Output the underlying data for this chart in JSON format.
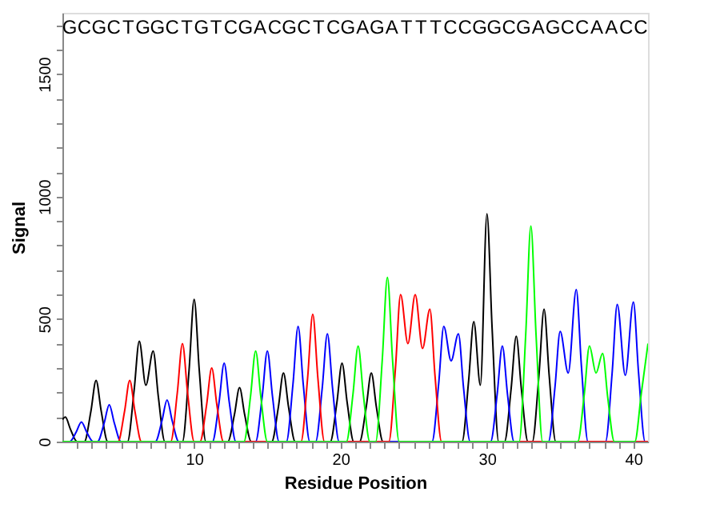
{
  "chart_data": {
    "type": "line",
    "xlabel": "Residue Position",
    "ylabel": "Signal",
    "xlim": [
      1,
      41
    ],
    "ylim": [
      0,
      1750
    ],
    "xticks": [
      {
        "value": 2,
        "label": null
      },
      {
        "value": 3,
        "label": null
      },
      {
        "value": 4,
        "label": null
      },
      {
        "value": 5,
        "label": null
      },
      {
        "value": 6,
        "label": null
      },
      {
        "value": 7,
        "label": null
      },
      {
        "value": 8,
        "label": null
      },
      {
        "value": 9,
        "label": null
      },
      10,
      {
        "value": 11,
        "label": null
      },
      {
        "value": 12,
        "label": null
      },
      {
        "value": 13,
        "label": null
      },
      {
        "value": 14,
        "label": null
      },
      {
        "value": 15,
        "label": null
      },
      {
        "value": 16,
        "label": null
      },
      {
        "value": 17,
        "label": null
      },
      {
        "value": 18,
        "label": null
      },
      {
        "value": 19,
        "label": null
      },
      20,
      {
        "value": 21,
        "label": null
      },
      {
        "value": 22,
        "label": null
      },
      {
        "value": 23,
        "label": null
      },
      {
        "value": 24,
        "label": null
      },
      {
        "value": 25,
        "label": null
      },
      {
        "value": 26,
        "label": null
      },
      {
        "value": 27,
        "label": null
      },
      {
        "value": 28,
        "label": null
      },
      {
        "value": 29,
        "label": null
      },
      30,
      {
        "value": 31,
        "label": null
      },
      {
        "value": 32,
        "label": null
      },
      {
        "value": 33,
        "label": null
      },
      {
        "value": 34,
        "label": null
      },
      {
        "value": 35,
        "label": null
      },
      {
        "value": 36,
        "label": null
      },
      {
        "value": 37,
        "label": null
      },
      {
        "value": 38,
        "label": null
      },
      {
        "value": 39,
        "label": null
      },
      40
    ],
    "yticks": [
      0,
      {
        "value": 100,
        "label": null
      },
      {
        "value": 200,
        "label": null
      },
      {
        "value": 300,
        "label": null
      },
      {
        "value": 400,
        "label": null
      },
      500,
      {
        "value": 600,
        "label": null
      },
      {
        "value": 700,
        "label": null
      },
      {
        "value": 800,
        "label": null
      },
      {
        "value": 900,
        "label": null
      },
      1000,
      {
        "value": 1100,
        "label": null
      },
      {
        "value": 1200,
        "label": null
      },
      {
        "value": 1300,
        "label": null
      },
      {
        "value": 1400,
        "label": null
      },
      1500,
      {
        "value": 1600,
        "label": null
      },
      {
        "value": 1700,
        "label": null
      }
    ],
    "series": [
      {
        "color": "#000000",
        "x": [
          1,
          1.2,
          1.55,
          2.0,
          2.5,
          2.95,
          3.3,
          3.65,
          4.1,
          5.45,
          5.9,
          6.25,
          6.7,
          7.2,
          7.55,
          8.0,
          9.2,
          9.65,
          10.0,
          10.35,
          10.8,
          12.3,
          12.75,
          13.1,
          13.45,
          13.9,
          15.3,
          15.75,
          16.1,
          16.45,
          16.9,
          19.3,
          19.75,
          20.1,
          20.45,
          20.9,
          21.3,
          21.75,
          22.1,
          22.45,
          22.9,
          28.3,
          28.75,
          29.1,
          29.55,
          30.0,
          30.35,
          30.8,
          31.2,
          31.65,
          32.0,
          32.35,
          32.8,
          33.1,
          33.55,
          33.9,
          34.25,
          34.7,
          41
        ],
        "values": [
          90,
          100,
          50,
          0,
          0,
          125,
          250,
          125,
          0,
          0,
          210,
          410,
          230,
          370,
          185,
          0,
          0,
          290,
          580,
          290,
          0,
          0,
          110,
          220,
          110,
          0,
          0,
          140,
          280,
          140,
          0,
          0,
          160,
          320,
          160,
          0,
          0,
          140,
          280,
          140,
          0,
          0,
          250,
          490,
          230,
          930,
          465,
          0,
          0,
          215,
          430,
          215,
          0,
          0,
          270,
          540,
          270,
          0,
          0
        ]
      },
      {
        "color": "#0000ff",
        "x": [
          1,
          1.5,
          1.95,
          2.3,
          2.65,
          3.1,
          3.4,
          3.85,
          4.2,
          4.55,
          5.0,
          7.35,
          7.8,
          8.15,
          8.5,
          8.95,
          11.25,
          11.7,
          12.05,
          12.4,
          12.85,
          14.2,
          14.65,
          15.0,
          15.35,
          15.8,
          16.3,
          16.75,
          17.1,
          17.45,
          17.9,
          18.3,
          18.75,
          19.1,
          19.45,
          19.9,
          26.25,
          26.7,
          27.05,
          27.55,
          28.05,
          28.4,
          28.85,
          30.25,
          30.7,
          31.05,
          31.4,
          31.85,
          34.2,
          34.65,
          35.0,
          35.55,
          36.1,
          36.45,
          36.9,
          38.1,
          38.55,
          38.9,
          39.45,
          40.0,
          40.35,
          40.8,
          41
        ],
        "values": [
          0,
          0,
          40,
          80,
          40,
          0,
          0,
          75,
          150,
          75,
          0,
          0,
          85,
          170,
          85,
          0,
          0,
          160,
          320,
          160,
          0,
          0,
          185,
          370,
          185,
          0,
          0,
          235,
          470,
          235,
          0,
          0,
          220,
          440,
          220,
          0,
          0,
          235,
          470,
          330,
          440,
          220,
          0,
          0,
          195,
          390,
          195,
          0,
          0,
          225,
          450,
          280,
          620,
          310,
          0,
          0,
          280,
          560,
          270,
          570,
          285,
          0,
          0
        ]
      },
      {
        "color": "#ff0000",
        "x": [
          1,
          4.8,
          5.25,
          5.6,
          5.95,
          6.4,
          8.4,
          8.85,
          9.2,
          9.55,
          10.0,
          10.4,
          10.85,
          11.2,
          11.55,
          12.0,
          17.3,
          17.75,
          18.1,
          18.45,
          18.9,
          23.3,
          23.75,
          24.1,
          24.6,
          25.1,
          25.6,
          26.1,
          26.45,
          26.9,
          41
        ],
        "values": [
          0,
          0,
          125,
          250,
          125,
          0,
          0,
          200,
          400,
          200,
          0,
          0,
          150,
          300,
          150,
          0,
          0,
          260,
          520,
          260,
          0,
          0,
          300,
          600,
          400,
          600,
          380,
          540,
          270,
          0,
          0
        ]
      },
      {
        "color": "#00ff00",
        "x": [
          1,
          13.4,
          13.85,
          14.2,
          14.55,
          15.0,
          20.4,
          20.85,
          21.2,
          21.55,
          22.0,
          22.4,
          22.85,
          23.2,
          23.55,
          24.0,
          32.2,
          32.65,
          33.0,
          33.35,
          33.8,
          36.2,
          36.65,
          37.0,
          37.45,
          37.9,
          38.25,
          38.7,
          40.1,
          40.55,
          41
        ],
        "values": [
          0,
          0,
          185,
          370,
          185,
          0,
          0,
          195,
          390,
          195,
          0,
          0,
          335,
          670,
          335,
          0,
          0,
          440,
          880,
          440,
          0,
          0,
          195,
          390,
          280,
          360,
          180,
          0,
          0,
          200,
          400
        ]
      }
    ],
    "annotations": [
      "G",
      "C",
      "G",
      "C",
      "T",
      "G",
      "G",
      "C",
      "T",
      "G",
      "T",
      "C",
      "G",
      "A",
      "C",
      "G",
      "C",
      "T",
      "C",
      "G",
      "A",
      "G",
      "A",
      "T",
      "T",
      "T",
      "C",
      "C",
      "G",
      "G",
      "C",
      "G",
      "A",
      "G",
      "C",
      "C",
      "A",
      "A",
      "C",
      "C"
    ]
  }
}
